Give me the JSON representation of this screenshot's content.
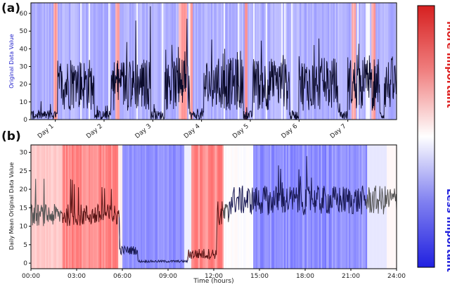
{
  "chart_data": [
    {
      "panel": "(a)",
      "type": "line",
      "ylabel": "Original Data Value",
      "ylim": [
        0,
        66
      ],
      "yticks": [
        0,
        10,
        20,
        30,
        40,
        50,
        60
      ],
      "x_tick_labels": [
        "Day 1",
        "Day 2",
        "Day 3",
        "Day 4",
        "Day 5",
        "Day 6",
        "Day 7"
      ],
      "days": 7.5,
      "description_of_series": "hourly-resolution value series over ~7.5 days, high (5-45, spikes to ~64) during daytime blocks, near 0-8 at night",
      "active_blocks_days": [
        [
          0.55,
          1.3
        ],
        [
          1.65,
          2.45
        ],
        [
          2.75,
          3.25
        ],
        [
          3.55,
          4.35
        ],
        [
          4.55,
          5.3
        ],
        [
          5.5,
          6.3
        ],
        [
          6.5,
          7.15
        ],
        [
          7.25,
          7.5
        ]
      ],
      "peak_values": [
        {
          "day": 2.45,
          "value": 64
        },
        {
          "day": 2.15,
          "value": 56
        },
        {
          "day": 3.2,
          "value": 57
        }
      ]
    },
    {
      "panel": "(b)",
      "type": "line",
      "ylabel": "Daily Mean Original Data Value",
      "xlabel": "Time (hours)",
      "ylim": [
        -1.5,
        32
      ],
      "yticks": [
        0,
        5,
        10,
        15,
        20,
        25,
        30
      ],
      "x_tick_labels": [
        "00:00",
        "03:00",
        "06:00",
        "09:00",
        "12:00",
        "15:00",
        "18:00",
        "21:00",
        "24:00"
      ],
      "xlim_hours": [
        0,
        24
      ],
      "segments": [
        {
          "from_hour": 0,
          "to_hour": 5.8,
          "level": 13,
          "noise": 3
        },
        {
          "from_hour": 5.8,
          "to_hour": 7.0,
          "level": 3.5,
          "noise": 1.2
        },
        {
          "from_hour": 7.0,
          "to_hour": 10.3,
          "level": 0.5,
          "noise": 0.3
        },
        {
          "from_hour": 10.3,
          "to_hour": 12.2,
          "level": 2.5,
          "noise": 1.5
        },
        {
          "from_hour": 12.2,
          "to_hour": 13.0,
          "level": 13,
          "noise": 4
        },
        {
          "from_hour": 13.0,
          "to_hour": 24,
          "level": 17,
          "noise": 4
        }
      ],
      "importance_hint": "red (more important) around 02:00-05:30 and 10:30-12:30; blue (less important) around 05:30-10:00 and 15:00-22:00"
    }
  ],
  "colorbar": {
    "top_label": "More important",
    "bottom_label": "Less important",
    "top_color": "#dd2222",
    "bottom_color": "#2222dd"
  },
  "colors": {
    "line_dark": "#0a0a2a",
    "line_gray": "#555555",
    "axis_label_blue": "#2222cc"
  }
}
